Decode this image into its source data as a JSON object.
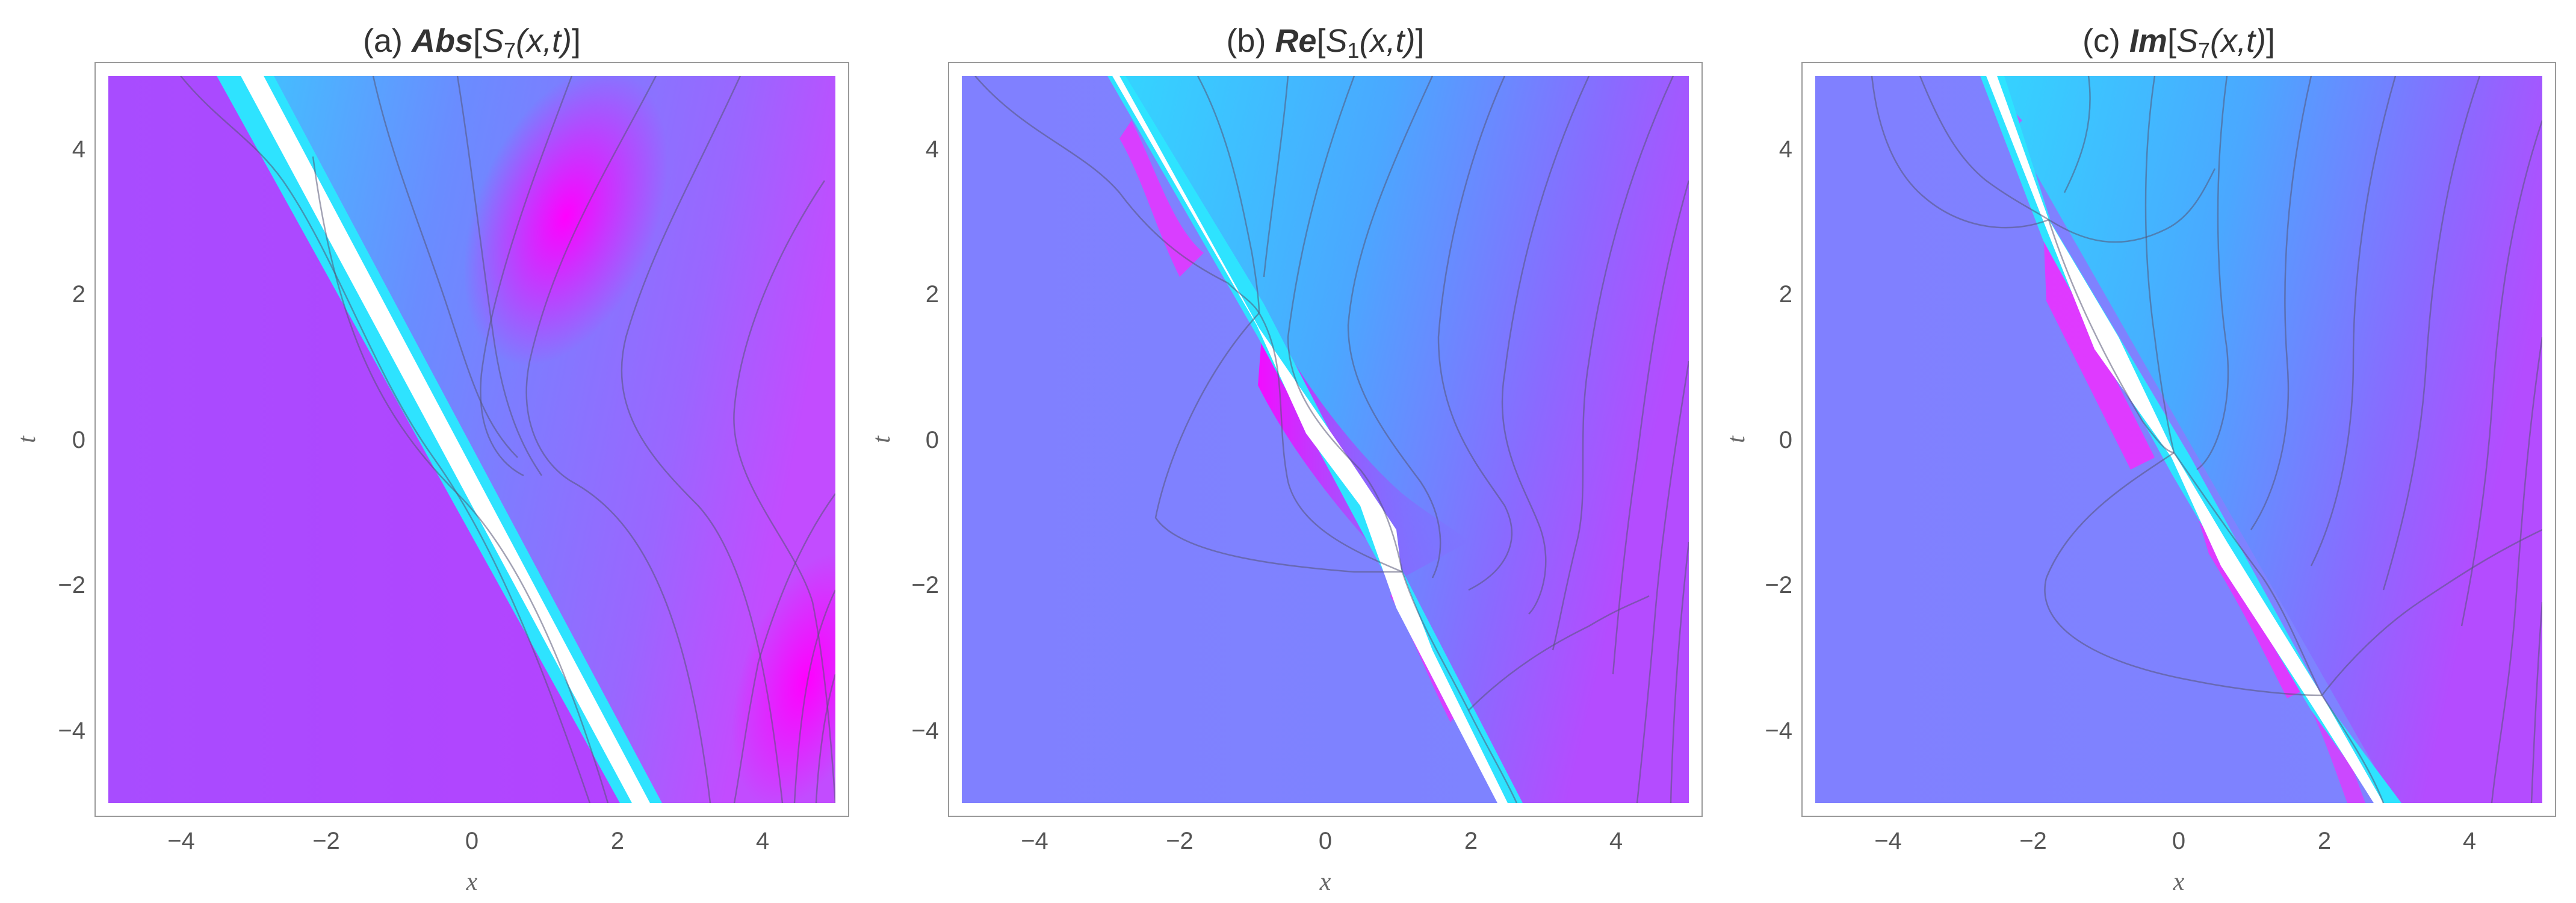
{
  "chart_data": [
    {
      "type": "heatmap",
      "title": {
        "prefix": "(a) ",
        "op": "Abs",
        "open": "[",
        "sym": "S",
        "sub": "7",
        "args": "(x,t)",
        "close": "]"
      },
      "xlabel": "x",
      "ylabel": "t",
      "xlim": [
        -5,
        5
      ],
      "ylim": [
        -5,
        5
      ],
      "xticks": [
        -4,
        -2,
        0,
        2,
        4
      ],
      "yticks": [
        -4,
        -2,
        0,
        2,
        4
      ],
      "xtick_labels": [
        "−4",
        "−2",
        "0",
        "2",
        "4"
      ],
      "ytick_labels": [
        "−4",
        "−2",
        "0",
        "2",
        "4"
      ],
      "colors": {
        "low": "#b44cff",
        "mid": "#6496ff",
        "high": "#ff00ff",
        "edge": "#33e5ff",
        "gap": "#ffffff"
      },
      "contours": "on",
      "features": {
        "singular_line": [
          [
            -3.2,
            5
          ],
          [
            2.4,
            -5
          ]
        ],
        "peaks": [
          [
            1.5,
            3.0
          ],
          [
            4.5,
            -4.2
          ]
        ]
      }
    },
    {
      "type": "heatmap",
      "title": {
        "prefix": "(b) ",
        "op": "Re",
        "open": "[",
        "sym": "S",
        "sub": "1",
        "args": "(x,t)",
        "close": "]"
      },
      "xlabel": "x",
      "ylabel": "t",
      "xlim": [
        -5,
        5
      ],
      "ylim": [
        -5,
        5
      ],
      "xticks": [
        -4,
        -2,
        0,
        2,
        4
      ],
      "yticks": [
        -4,
        -2,
        0,
        2,
        4
      ],
      "xtick_labels": [
        "−4",
        "−2",
        "0",
        "2",
        "4"
      ],
      "ytick_labels": [
        "−4",
        "−2",
        "0",
        "2",
        "4"
      ],
      "colors": {
        "low": "#8080ff",
        "mid": "#3ec6ff",
        "high": "#cc33ff",
        "edge": "#33e5ff",
        "gap": "#ffffff"
      },
      "contours": "on",
      "features": {
        "singular_line": [
          [
            -2.9,
            5
          ],
          [
            2.6,
            -5
          ]
        ],
        "pinch_points": [
          [
            -0.9,
            1.4
          ],
          [
            0.8,
            -1.8
          ]
        ]
      }
    },
    {
      "type": "heatmap",
      "title": {
        "prefix": "(c) ",
        "op": "Im",
        "open": "[",
        "sym": "S",
        "sub": "7",
        "args": "(x,t)",
        "close": "]"
      },
      "xlabel": "x",
      "ylabel": "t",
      "xlim": [
        -5,
        5
      ],
      "ylim": [
        -5,
        5
      ],
      "xticks": [
        -4,
        -2,
        0,
        2,
        4
      ],
      "yticks": [
        -4,
        -2,
        0,
        2,
        4
      ],
      "xtick_labels": [
        "−4",
        "−2",
        "0",
        "2",
        "4"
      ],
      "ytick_labels": [
        "−4",
        "−2",
        "0",
        "2",
        "4"
      ],
      "colors": {
        "low": "#8080ff",
        "mid": "#3ec6ff",
        "high": "#cc33ff",
        "edge": "#33e5ff",
        "gap": "#ffffff"
      },
      "contours": "on",
      "features": {
        "singular_line": [
          [
            -3.1,
            5
          ],
          [
            2.8,
            -5
          ]
        ],
        "pinch_points": [
          [
            -1.8,
            3.1
          ],
          [
            0.0,
            -0.2
          ],
          [
            1.8,
            -3.4
          ]
        ]
      }
    }
  ]
}
